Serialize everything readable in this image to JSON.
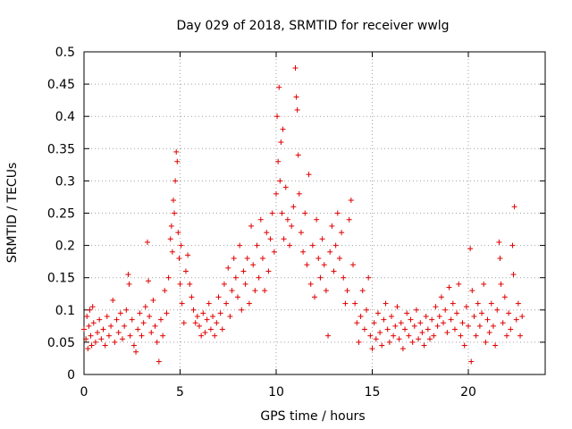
{
  "chart_data": {
    "type": "scatter",
    "title": "Day 029 of 2018, SRMTID for receiver wwlg",
    "xlabel": "GPS time / hours",
    "ylabel": "SRMTID / TECUs",
    "xlim": [
      0,
      24
    ],
    "ylim": [
      0,
      0.5
    ],
    "xticks": [
      0,
      5,
      10,
      15,
      20
    ],
    "xtick_labels": [
      "0",
      "5",
      "10",
      "15",
      "20"
    ],
    "yticks": [
      0,
      0.05,
      0.1,
      0.15,
      0.2,
      0.25,
      0.3,
      0.35,
      0.4,
      0.45,
      0.5
    ],
    "ytick_labels": [
      "0",
      "0.05",
      "0.1",
      "0.15",
      "0.2",
      "0.25",
      "0.3",
      "0.35",
      "0.4",
      "0.45",
      "0.5"
    ],
    "grid": true,
    "marker": "+",
    "color": "#e00000",
    "series": [
      {
        "name": "wwlg",
        "points": [
          [
            0.0,
            0.07
          ],
          [
            0.1,
            0.055
          ],
          [
            0.15,
            0.09
          ],
          [
            0.2,
            0.04
          ],
          [
            0.25,
            0.075
          ],
          [
            0.3,
            0.1
          ],
          [
            0.35,
            0.06
          ],
          [
            0.4,
            0.045
          ],
          [
            0.45,
            0.105
          ],
          [
            0.5,
            0.08
          ],
          [
            0.6,
            0.05
          ],
          [
            0.7,
            0.065
          ],
          [
            0.8,
            0.085
          ],
          [
            0.9,
            0.055
          ],
          [
            1.0,
            0.07
          ],
          [
            1.1,
            0.045
          ],
          [
            1.2,
            0.09
          ],
          [
            1.3,
            0.06
          ],
          [
            1.4,
            0.075
          ],
          [
            1.5,
            0.115
          ],
          [
            1.6,
            0.05
          ],
          [
            1.7,
            0.085
          ],
          [
            1.8,
            0.065
          ],
          [
            1.9,
            0.095
          ],
          [
            2.0,
            0.055
          ],
          [
            2.1,
            0.075
          ],
          [
            2.2,
            0.1
          ],
          [
            2.3,
            0.155
          ],
          [
            2.35,
            0.14
          ],
          [
            2.4,
            0.06
          ],
          [
            2.5,
            0.085
          ],
          [
            2.6,
            0.045
          ],
          [
            2.7,
            0.035
          ],
          [
            2.8,
            0.07
          ],
          [
            2.9,
            0.095
          ],
          [
            3.0,
            0.06
          ],
          [
            3.1,
            0.08
          ],
          [
            3.2,
            0.105
          ],
          [
            3.3,
            0.205
          ],
          [
            3.35,
            0.145
          ],
          [
            3.4,
            0.09
          ],
          [
            3.5,
            0.065
          ],
          [
            3.6,
            0.115
          ],
          [
            3.7,
            0.075
          ],
          [
            3.8,
            0.05
          ],
          [
            3.9,
            0.02
          ],
          [
            4.0,
            0.085
          ],
          [
            4.1,
            0.06
          ],
          [
            4.2,
            0.13
          ],
          [
            4.3,
            0.095
          ],
          [
            4.4,
            0.15
          ],
          [
            4.5,
            0.21
          ],
          [
            4.55,
            0.23
          ],
          [
            4.6,
            0.19
          ],
          [
            4.65,
            0.27
          ],
          [
            4.7,
            0.25
          ],
          [
            4.75,
            0.3
          ],
          [
            4.8,
            0.345
          ],
          [
            4.85,
            0.33
          ],
          [
            4.9,
            0.22
          ],
          [
            4.95,
            0.18
          ],
          [
            5.0,
            0.14
          ],
          [
            5.05,
            0.2
          ],
          [
            5.1,
            0.11
          ],
          [
            5.2,
            0.08
          ],
          [
            5.3,
            0.16
          ],
          [
            5.4,
            0.185
          ],
          [
            5.5,
            0.14
          ],
          [
            5.6,
            0.12
          ],
          [
            5.7,
            0.1
          ],
          [
            5.8,
            0.08
          ],
          [
            5.9,
            0.09
          ],
          [
            6.0,
            0.075
          ],
          [
            6.1,
            0.06
          ],
          [
            6.2,
            0.095
          ],
          [
            6.3,
            0.065
          ],
          [
            6.4,
            0.085
          ],
          [
            6.5,
            0.11
          ],
          [
            6.6,
            0.07
          ],
          [
            6.7,
            0.09
          ],
          [
            6.8,
            0.06
          ],
          [
            6.9,
            0.08
          ],
          [
            7.0,
            0.12
          ],
          [
            7.1,
            0.095
          ],
          [
            7.2,
            0.07
          ],
          [
            7.3,
            0.14
          ],
          [
            7.4,
            0.11
          ],
          [
            7.5,
            0.165
          ],
          [
            7.6,
            0.09
          ],
          [
            7.7,
            0.13
          ],
          [
            7.8,
            0.18
          ],
          [
            7.9,
            0.15
          ],
          [
            8.0,
            0.12
          ],
          [
            8.1,
            0.2
          ],
          [
            8.2,
            0.1
          ],
          [
            8.3,
            0.16
          ],
          [
            8.4,
            0.14
          ],
          [
            8.5,
            0.18
          ],
          [
            8.6,
            0.11
          ],
          [
            8.7,
            0.23
          ],
          [
            8.8,
            0.17
          ],
          [
            8.9,
            0.13
          ],
          [
            9.0,
            0.2
          ],
          [
            9.1,
            0.15
          ],
          [
            9.2,
            0.24
          ],
          [
            9.3,
            0.18
          ],
          [
            9.4,
            0.13
          ],
          [
            9.5,
            0.22
          ],
          [
            9.6,
            0.16
          ],
          [
            9.7,
            0.21
          ],
          [
            9.8,
            0.25
          ],
          [
            9.9,
            0.19
          ],
          [
            10.0,
            0.28
          ],
          [
            10.05,
            0.4
          ],
          [
            10.1,
            0.33
          ],
          [
            10.15,
            0.445
          ],
          [
            10.2,
            0.3
          ],
          [
            10.25,
            0.36
          ],
          [
            10.3,
            0.25
          ],
          [
            10.35,
            0.38
          ],
          [
            10.4,
            0.21
          ],
          [
            10.5,
            0.29
          ],
          [
            10.6,
            0.24
          ],
          [
            10.7,
            0.2
          ],
          [
            10.8,
            0.23
          ],
          [
            10.9,
            0.26
          ],
          [
            11.0,
            0.475
          ],
          [
            11.05,
            0.43
          ],
          [
            11.1,
            0.41
          ],
          [
            11.15,
            0.34
          ],
          [
            11.2,
            0.28
          ],
          [
            11.3,
            0.22
          ],
          [
            11.4,
            0.19
          ],
          [
            11.5,
            0.25
          ],
          [
            11.6,
            0.17
          ],
          [
            11.7,
            0.31
          ],
          [
            11.8,
            0.14
          ],
          [
            11.9,
            0.2
          ],
          [
            12.0,
            0.12
          ],
          [
            12.1,
            0.24
          ],
          [
            12.2,
            0.18
          ],
          [
            12.3,
            0.15
          ],
          [
            12.4,
            0.21
          ],
          [
            12.5,
            0.17
          ],
          [
            12.6,
            0.13
          ],
          [
            12.7,
            0.06
          ],
          [
            12.8,
            0.19
          ],
          [
            12.9,
            0.23
          ],
          [
            13.0,
            0.16
          ],
          [
            13.1,
            0.2
          ],
          [
            13.2,
            0.25
          ],
          [
            13.3,
            0.18
          ],
          [
            13.4,
            0.22
          ],
          [
            13.5,
            0.15
          ],
          [
            13.6,
            0.11
          ],
          [
            13.7,
            0.13
          ],
          [
            13.8,
            0.24
          ],
          [
            13.9,
            0.27
          ],
          [
            14.0,
            0.17
          ],
          [
            14.1,
            0.11
          ],
          [
            14.2,
            0.08
          ],
          [
            14.3,
            0.05
          ],
          [
            14.4,
            0.09
          ],
          [
            14.5,
            0.13
          ],
          [
            14.6,
            0.07
          ],
          [
            14.7,
            0.1
          ],
          [
            14.8,
            0.15
          ],
          [
            14.9,
            0.06
          ],
          [
            15.0,
            0.04
          ],
          [
            15.1,
            0.08
          ],
          [
            15.2,
            0.055
          ],
          [
            15.3,
            0.095
          ],
          [
            15.4,
            0.065
          ],
          [
            15.5,
            0.045
          ],
          [
            15.6,
            0.085
          ],
          [
            15.7,
            0.11
          ],
          [
            15.8,
            0.07
          ],
          [
            15.9,
            0.05
          ],
          [
            16.0,
            0.09
          ],
          [
            16.1,
            0.06
          ],
          [
            16.2,
            0.075
          ],
          [
            16.3,
            0.105
          ],
          [
            16.4,
            0.055
          ],
          [
            16.5,
            0.08
          ],
          [
            16.6,
            0.04
          ],
          [
            16.7,
            0.07
          ],
          [
            16.8,
            0.095
          ],
          [
            16.9,
            0.06
          ],
          [
            17.0,
            0.085
          ],
          [
            17.1,
            0.05
          ],
          [
            17.2,
            0.075
          ],
          [
            17.3,
            0.1
          ],
          [
            17.4,
            0.055
          ],
          [
            17.5,
            0.08
          ],
          [
            17.6,
            0.065
          ],
          [
            17.7,
            0.045
          ],
          [
            17.8,
            0.09
          ],
          [
            17.9,
            0.07
          ],
          [
            18.0,
            0.055
          ],
          [
            18.1,
            0.085
          ],
          [
            18.2,
            0.06
          ],
          [
            18.3,
            0.105
          ],
          [
            18.4,
            0.075
          ],
          [
            18.5,
            0.09
          ],
          [
            18.6,
            0.12
          ],
          [
            18.7,
            0.08
          ],
          [
            18.8,
            0.1
          ],
          [
            18.9,
            0.065
          ],
          [
            19.0,
            0.135
          ],
          [
            19.1,
            0.085
          ],
          [
            19.2,
            0.11
          ],
          [
            19.3,
            0.07
          ],
          [
            19.4,
            0.095
          ],
          [
            19.5,
            0.14
          ],
          [
            19.6,
            0.06
          ],
          [
            19.7,
            0.08
          ],
          [
            19.8,
            0.045
          ],
          [
            19.9,
            0.105
          ],
          [
            20.0,
            0.075
          ],
          [
            20.1,
            0.195
          ],
          [
            20.15,
            0.02
          ],
          [
            20.2,
            0.13
          ],
          [
            20.3,
            0.09
          ],
          [
            20.4,
            0.06
          ],
          [
            20.5,
            0.11
          ],
          [
            20.6,
            0.075
          ],
          [
            20.7,
            0.095
          ],
          [
            20.8,
            0.14
          ],
          [
            20.9,
            0.05
          ],
          [
            21.0,
            0.085
          ],
          [
            21.1,
            0.065
          ],
          [
            21.2,
            0.11
          ],
          [
            21.3,
            0.075
          ],
          [
            21.4,
            0.045
          ],
          [
            21.5,
            0.1
          ],
          [
            21.6,
            0.205
          ],
          [
            21.65,
            0.18
          ],
          [
            21.7,
            0.14
          ],
          [
            21.8,
            0.08
          ],
          [
            21.9,
            0.12
          ],
          [
            22.0,
            0.06
          ],
          [
            22.1,
            0.095
          ],
          [
            22.2,
            0.07
          ],
          [
            22.3,
            0.2
          ],
          [
            22.35,
            0.155
          ],
          [
            22.4,
            0.26
          ],
          [
            22.5,
            0.085
          ],
          [
            22.6,
            0.11
          ],
          [
            22.7,
            0.06
          ],
          [
            22.8,
            0.09
          ]
        ]
      }
    ]
  }
}
